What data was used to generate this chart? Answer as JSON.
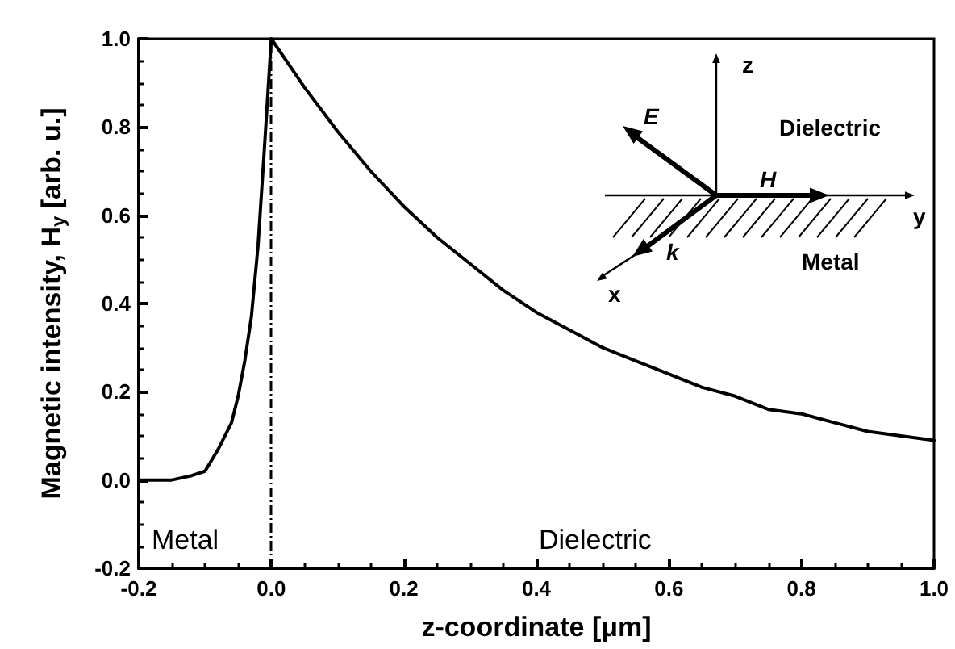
{
  "chart_data": {
    "type": "line",
    "xlabel": "z-coordinate [μm]",
    "ylabel": "Magnetic intensity, H$_{y}$ [arb. u.]",
    "x": [
      -0.2,
      -0.15,
      -0.12,
      -0.1,
      -0.08,
      -0.06,
      -0.05,
      -0.04,
      -0.03,
      -0.02,
      -0.01,
      0,
      0.05,
      0.1,
      0.15,
      0.2,
      0.25,
      0.3,
      0.35,
      0.4,
      0.45,
      0.5,
      0.55,
      0.6,
      0.65,
      0.7,
      0.75,
      0.8,
      0.85,
      0.9,
      0.95,
      1.0
    ],
    "series": [
      {
        "color": "#000000",
        "values": [
          0,
          0,
          0.01,
          0.02,
          0.07,
          0.13,
          0.19,
          0.27,
          0.37,
          0.53,
          0.76,
          1.0,
          0.89,
          0.79,
          0.7,
          0.62,
          0.55,
          0.49,
          0.43,
          0.38,
          0.34,
          0.3,
          0.27,
          0.24,
          0.21,
          0.19,
          0.16,
          0.15,
          0.13,
          0.11,
          0.1,
          0.09
        ]
      }
    ],
    "xlim": [
      -0.2,
      1.0
    ],
    "ylim": [
      -0.2,
      1.0
    ],
    "xticks": [
      {
        "value": -0.2,
        "label": "-0.2"
      },
      {
        "value": 0,
        "label": "0.0"
      },
      {
        "value": 0.2,
        "label": "0.2"
      },
      {
        "value": 0.4,
        "label": "0.4"
      },
      {
        "value": 0.6,
        "label": "0.6"
      },
      {
        "value": 0.8,
        "label": "0.8"
      },
      {
        "value": 1.0,
        "label": "1.0"
      }
    ],
    "yticks": [
      {
        "value": -0.2,
        "label": "-0.2"
      },
      {
        "value": 0,
        "label": "0.0"
      },
      {
        "value": 0.2,
        "label": "0.2"
      },
      {
        "value": 0.4,
        "label": "0.4"
      },
      {
        "value": 0.6,
        "label": "0.6"
      },
      {
        "value": 0.8,
        "label": "0.8"
      },
      {
        "value": 1.0,
        "label": "1.0"
      }
    ],
    "ref_lines": [
      {
        "axis": "x",
        "value": 0,
        "color": "#000000",
        "line_style": "dashed"
      }
    ],
    "annotations": [
      "Metal",
      "Dielectric",
      "z",
      "E⃗",
      "Dielectric",
      "H⃗",
      "y",
      "k⃗",
      "Metal",
      "x"
    ],
    "grid": false,
    "marker": "none",
    "line_style": "solid"
  }
}
